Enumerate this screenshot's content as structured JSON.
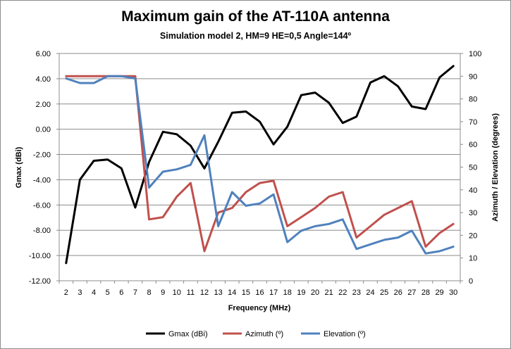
{
  "chart_data": {
    "type": "line",
    "title": "Maximum gain of the AT-110A antenna",
    "subtitle": "Simulation model 2, HM=9 HE=0,5 Angle=144º",
    "xlabel": "Frequency (MHz)",
    "ylabel_left": "Gmax (dBi)",
    "ylabel_right": "Azimuth / Elevation  (degrees)",
    "x": [
      2,
      3,
      4,
      5,
      6,
      7,
      8,
      9,
      10,
      11,
      12,
      13,
      14,
      15,
      16,
      17,
      18,
      19,
      20,
      21,
      22,
      23,
      24,
      25,
      26,
      27,
      28,
      29,
      30
    ],
    "x_tick_labels": [
      "2",
      "3",
      "4",
      "5",
      "6",
      "7",
      "8",
      "9",
      "10",
      "11",
      "12",
      "13",
      "14",
      "15",
      "16",
      "17",
      "18",
      "19",
      "20",
      "21",
      "22",
      "23",
      "24",
      "25",
      "26",
      "27",
      "28",
      "29",
      "30"
    ],
    "y_left_ticks": [
      "6.00",
      "4.00",
      "2.00",
      "0.00",
      "-2.00",
      "-4.00",
      "-6.00",
      "-8.00",
      "-10.00",
      "-12.00"
    ],
    "y_right_ticks": [
      "100",
      "90",
      "80",
      "70",
      "60",
      "50",
      "40",
      "30",
      "20",
      "10",
      "0"
    ],
    "ylim_left": [
      -12,
      6
    ],
    "ylim_right": [
      0,
      100
    ],
    "grid": "horizontal",
    "legend_position": "bottom",
    "series": [
      {
        "name": "Gmax (dBi)",
        "axis": "left",
        "color": "#000000",
        "values": [
          -10.6,
          -4.0,
          -2.5,
          -2.4,
          -3.1,
          -6.2,
          -2.6,
          -0.2,
          -0.4,
          -1.3,
          -3.1,
          -1.0,
          1.3,
          1.4,
          0.6,
          -1.2,
          0.2,
          2.7,
          2.9,
          2.1,
          0.5,
          1.0,
          3.7,
          4.2,
          3.4,
          1.8,
          1.6,
          4.1,
          5.0
        ]
      },
      {
        "name": "Azimuth (º)",
        "axis": "right",
        "color": "#c0504d",
        "values": [
          90,
          90,
          90,
          90,
          90,
          90,
          27,
          28,
          37,
          43,
          13,
          30,
          32,
          39,
          43,
          44,
          24,
          28,
          32,
          37,
          39,
          19,
          24,
          29,
          32,
          35,
          15,
          21,
          25
        ]
      },
      {
        "name": "Elevation (º)",
        "axis": "right",
        "color": "#4f81bd",
        "values": [
          89,
          87,
          87,
          90,
          90,
          89,
          41,
          48,
          49,
          51,
          64,
          24,
          39,
          33,
          34,
          38,
          17,
          22,
          24,
          25,
          27,
          14,
          16,
          18,
          19,
          22,
          12,
          13,
          15
        ]
      }
    ]
  }
}
